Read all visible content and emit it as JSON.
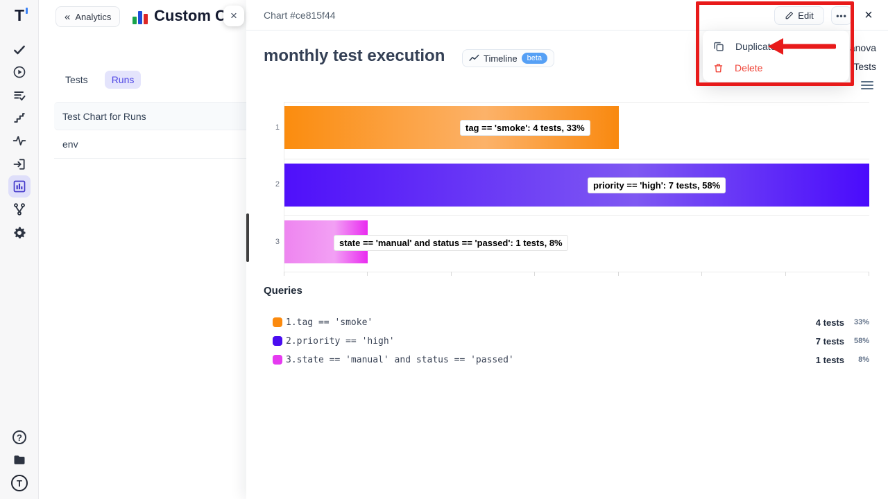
{
  "icons": {
    "back_chevrons": "«",
    "close": "×",
    "more": "•••",
    "help": "?",
    "logo_letter": "T"
  },
  "rail": {
    "items": [
      "logo",
      "tests",
      "runs",
      "plans",
      "milestones",
      "pulse",
      "import",
      "analytics",
      "branches",
      "settings",
      "help",
      "projects",
      "account"
    ],
    "active_item": "analytics",
    "active_color": "#4338ca"
  },
  "drawer": {
    "back_label": "Analytics",
    "title": "Custom Charts",
    "tabs": [
      {
        "label": "Tests",
        "active": false
      },
      {
        "label": "Runs",
        "active": true
      }
    ],
    "items": [
      "Test Chart for Runs",
      "env"
    ]
  },
  "panel": {
    "header_title": "Chart #ce815f44",
    "edit_label": "Edit",
    "meta_line1": "anova",
    "meta_line2": "Tests",
    "chart_title": "monthly test execution",
    "timeline_label": "Timeline",
    "beta_label": "beta"
  },
  "menu": {
    "items": [
      {
        "label": "Duplicate",
        "color": "#334155"
      },
      {
        "label": "Delete",
        "color": "#f04438"
      }
    ]
  },
  "chart_data": {
    "type": "bar",
    "orientation": "horizontal",
    "title": "monthly test execution",
    "categories": [
      "1",
      "2",
      "3"
    ],
    "series": [
      {
        "query": "tag == 'smoke'",
        "tests": 4,
        "percent": 33,
        "label": "tag == 'smoke': 4 tests, 33%",
        "gradient": [
          "#fb8c0e",
          "#fcb269",
          "#f9890f"
        ]
      },
      {
        "query": "priority == 'high'",
        "tests": 7,
        "percent": 58,
        "label": "priority == 'high': 7 tests, 58%",
        "gradient": [
          "#4f10fa",
          "#7e58f2",
          "#4a0bfc"
        ]
      },
      {
        "query": "state == 'manual' and status == 'passed'",
        "tests": 1,
        "percent": 8,
        "label": "state == 'manual' and status == 'passed': 1 tests, 8%",
        "gradient": [
          "#ee85f0",
          "#f2a0f4",
          "#e92bf0"
        ]
      }
    ],
    "xlim": [
      0,
      7
    ],
    "x_ticks": 8,
    "grid": true,
    "legend_position": "bottom"
  },
  "queries": {
    "title": "Queries",
    "rows": [
      {
        "index": "1.",
        "query": "tag == 'smoke'",
        "tests": "4 tests",
        "percent": "33%",
        "color": "#fb8a0e"
      },
      {
        "index": "2.",
        "query": "priority == 'high'",
        "tests": "7 tests",
        "percent": "58%",
        "color": "#4a0df0"
      },
      {
        "index": "3.",
        "query": "state == 'manual' and status == 'passed'",
        "tests": "1 tests",
        "percent": "8%",
        "color": "#e53af0"
      }
    ]
  }
}
